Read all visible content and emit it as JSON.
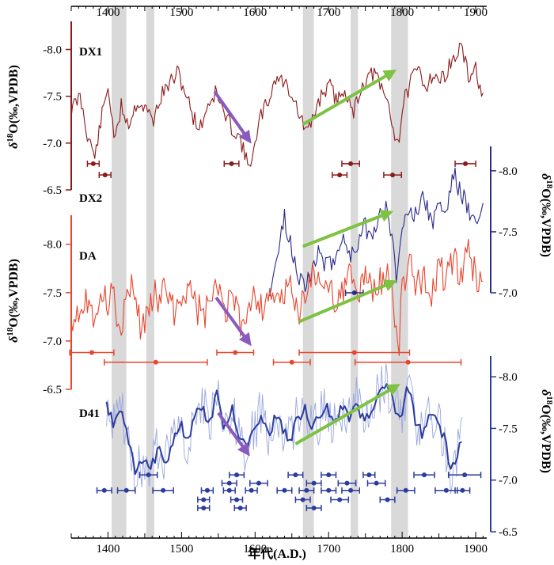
{
  "chart_data": {
    "type": "line",
    "xlabel": "年代(A.D.)",
    "xlim": [
      1350,
      1915
    ],
    "x_ticks": [
      "1400",
      "1500",
      "1600",
      "1700",
      "1800",
      "1900"
    ],
    "shaded_periods": [
      [
        1405,
        1425
      ],
      [
        1452,
        1463
      ],
      [
        1665,
        1680
      ],
      [
        1730,
        1740
      ],
      [
        1785,
        1808
      ]
    ],
    "panels": [
      {
        "name": "DX1",
        "color": "#8b1a1a",
        "axis_side": "left",
        "ylabel": "δ18O(‰,VPDB)",
        "ylim": [
          -8.3,
          -6.5
        ],
        "y_ticks": [
          "-8.0",
          "-7.5",
          "-7.0",
          "-6.5"
        ],
        "anchors": [
          [
            1350,
            -7.35
          ],
          [
            1362,
            -7.5
          ],
          [
            1372,
            -7.1
          ],
          [
            1382,
            -6.85
          ],
          [
            1392,
            -7.3
          ],
          [
            1400,
            -7.6
          ],
          [
            1410,
            -7.0
          ],
          [
            1418,
            -7.4
          ],
          [
            1428,
            -7.2
          ],
          [
            1440,
            -7.45
          ],
          [
            1452,
            -7.35
          ],
          [
            1462,
            -7.25
          ],
          [
            1472,
            -7.5
          ],
          [
            1485,
            -7.65
          ],
          [
            1495,
            -7.75
          ],
          [
            1505,
            -7.55
          ],
          [
            1515,
            -7.3
          ],
          [
            1525,
            -7.15
          ],
          [
            1535,
            -7.4
          ],
          [
            1547,
            -7.55
          ],
          [
            1558,
            -7.3
          ],
          [
            1570,
            -7.15
          ],
          [
            1580,
            -7.05
          ],
          [
            1590,
            -6.75
          ],
          [
            1600,
            -6.95
          ],
          [
            1608,
            -7.3
          ],
          [
            1618,
            -7.45
          ],
          [
            1628,
            -7.7
          ],
          [
            1640,
            -7.65
          ],
          [
            1652,
            -7.5
          ],
          [
            1662,
            -7.25
          ],
          [
            1672,
            -7.1
          ],
          [
            1682,
            -7.35
          ],
          [
            1692,
            -7.55
          ],
          [
            1702,
            -7.6
          ],
          [
            1712,
            -7.45
          ],
          [
            1722,
            -7.6
          ],
          [
            1732,
            -7.3
          ],
          [
            1742,
            -7.55
          ],
          [
            1752,
            -7.7
          ],
          [
            1762,
            -7.75
          ],
          [
            1770,
            -7.6
          ],
          [
            1780,
            -7.45
          ],
          [
            1788,
            -7.15
          ],
          [
            1795,
            -7.0
          ],
          [
            1802,
            -7.45
          ],
          [
            1812,
            -7.65
          ],
          [
            1822,
            -7.8
          ],
          [
            1832,
            -7.6
          ],
          [
            1842,
            -7.75
          ],
          [
            1852,
            -7.65
          ],
          [
            1862,
            -7.8
          ],
          [
            1872,
            -7.9
          ],
          [
            1880,
            -8.05
          ],
          [
            1890,
            -7.7
          ],
          [
            1900,
            -7.8
          ],
          [
            1910,
            -7.45
          ]
        ],
        "noise": 0.09,
        "seed": 11,
        "date_points": [
          {
            "x": 1380,
            "y": -6.78,
            "err": 8
          },
          {
            "x": 1396,
            "y": -6.66,
            "err": 8
          },
          {
            "x": 1568,
            "y": -6.78,
            "err": 10
          },
          {
            "x": 1715,
            "y": -6.66,
            "err": 10
          },
          {
            "x": 1730,
            "y": -6.78,
            "err": 12
          },
          {
            "x": 1787,
            "y": -6.66,
            "err": 12
          },
          {
            "x": 1886,
            "y": -6.78,
            "err": 14
          }
        ],
        "arrows": [
          {
            "color": "purple",
            "from": [
              1545,
              -7.55
            ],
            "to": [
              1590,
              -7.05
            ]
          },
          {
            "color": "green",
            "from": [
              1665,
              -7.2
            ],
            "to": [
              1785,
              -7.75
            ]
          }
        ]
      },
      {
        "name": "DX2",
        "color": "#2a2a8c",
        "axis_side": "right",
        "ylabel": "δ18O(‰,VPDB)",
        "ylim": [
          -8.2,
          -7.0
        ],
        "y_ticks": [
          "-8.0",
          "-7.5",
          "-7.0"
        ],
        "anchors": [
          [
            1620,
            -7.05
          ],
          [
            1630,
            -7.3
          ],
          [
            1640,
            -7.6
          ],
          [
            1650,
            -7.35
          ],
          [
            1660,
            -7.15
          ],
          [
            1670,
            -7.05
          ],
          [
            1678,
            -7.2
          ],
          [
            1688,
            -7.35
          ],
          [
            1698,
            -7.2
          ],
          [
            1708,
            -7.3
          ],
          [
            1718,
            -7.45
          ],
          [
            1728,
            -7.3
          ],
          [
            1738,
            -7.4
          ],
          [
            1748,
            -7.55
          ],
          [
            1758,
            -7.5
          ],
          [
            1768,
            -7.6
          ],
          [
            1778,
            -7.7
          ],
          [
            1786,
            -7.45
          ],
          [
            1792,
            -7.15
          ],
          [
            1800,
            -7.5
          ],
          [
            1810,
            -7.75
          ],
          [
            1820,
            -7.6
          ],
          [
            1830,
            -7.8
          ],
          [
            1840,
            -7.55
          ],
          [
            1850,
            -7.75
          ],
          [
            1860,
            -7.65
          ],
          [
            1870,
            -8.0
          ],
          [
            1880,
            -7.8
          ],
          [
            1890,
            -7.7
          ],
          [
            1900,
            -7.55
          ],
          [
            1910,
            -7.7
          ]
        ],
        "noise": 0.09,
        "seed": 23,
        "date_points": [
          {
            "x": 1735,
            "y": -7.0,
            "err": 12
          }
        ],
        "arrows": [
          {
            "color": "green",
            "from": [
              1665,
              -7.38
            ],
            "to": [
              1780,
              -7.65
            ]
          }
        ]
      },
      {
        "name": "DA",
        "color": "#e8452d",
        "axis_side": "left",
        "ylabel": "δ18O(‰,VPDB)",
        "ylim": [
          -8.3,
          -6.5
        ],
        "y_ticks": [
          "-8.0",
          "-7.5",
          "-7.0",
          "-6.5"
        ],
        "anchors": [
          [
            1350,
            -7.25
          ],
          [
            1360,
            -7.35
          ],
          [
            1370,
            -7.45
          ],
          [
            1380,
            -7.3
          ],
          [
            1390,
            -7.5
          ],
          [
            1400,
            -7.35
          ],
          [
            1408,
            -7.7
          ],
          [
            1415,
            -6.95
          ],
          [
            1425,
            -7.45
          ],
          [
            1435,
            -7.55
          ],
          [
            1445,
            -7.1
          ],
          [
            1455,
            -7.3
          ],
          [
            1462,
            -7.55
          ],
          [
            1470,
            -7.4
          ],
          [
            1480,
            -7.55
          ],
          [
            1490,
            -7.3
          ],
          [
            1500,
            -7.45
          ],
          [
            1510,
            -7.6
          ],
          [
            1520,
            -7.35
          ],
          [
            1530,
            -7.25
          ],
          [
            1540,
            -7.4
          ],
          [
            1550,
            -7.55
          ],
          [
            1560,
            -7.3
          ],
          [
            1570,
            -7.45
          ],
          [
            1580,
            -7.15
          ],
          [
            1590,
            -7.35
          ],
          [
            1600,
            -7.5
          ],
          [
            1610,
            -7.3
          ],
          [
            1620,
            -7.55
          ],
          [
            1630,
            -7.35
          ],
          [
            1640,
            -7.45
          ],
          [
            1650,
            -7.6
          ],
          [
            1660,
            -7.3
          ],
          [
            1670,
            -7.5
          ],
          [
            1680,
            -7.75
          ],
          [
            1690,
            -7.45
          ],
          [
            1700,
            -7.6
          ],
          [
            1710,
            -7.4
          ],
          [
            1720,
            -7.55
          ],
          [
            1730,
            -7.65
          ],
          [
            1740,
            -7.45
          ],
          [
            1750,
            -7.7
          ],
          [
            1760,
            -7.5
          ],
          [
            1770,
            -7.6
          ],
          [
            1780,
            -7.75
          ],
          [
            1788,
            -7.4
          ],
          [
            1795,
            -6.85
          ],
          [
            1800,
            -7.55
          ],
          [
            1810,
            -7.8
          ],
          [
            1820,
            -7.55
          ],
          [
            1830,
            -7.7
          ],
          [
            1840,
            -7.5
          ],
          [
            1850,
            -7.8
          ],
          [
            1860,
            -7.6
          ],
          [
            1870,
            -7.9
          ],
          [
            1880,
            -7.6
          ],
          [
            1890,
            -7.95
          ],
          [
            1900,
            -7.65
          ],
          [
            1910,
            -7.6
          ]
        ],
        "noise": 0.17,
        "seed": 37,
        "date_points": [
          {
            "x": 1378,
            "y": -6.88,
            "err": 30
          },
          {
            "x": 1573,
            "y": -6.88,
            "err": 25
          },
          {
            "x": 1735,
            "y": -6.88,
            "err": 75
          },
          {
            "x": 1465,
            "y": -6.78,
            "err": 70
          },
          {
            "x": 1650,
            "y": -6.78,
            "err": 25
          },
          {
            "x": 1808,
            "y": -6.78,
            "err": 72
          }
        ],
        "arrows": [
          {
            "color": "purple",
            "from": [
              1547,
              -7.45
            ],
            "to": [
              1590,
              -7.0
            ]
          },
          {
            "color": "green",
            "from": [
              1660,
              -7.2
            ],
            "to": [
              1785,
              -7.6
            ]
          }
        ]
      },
      {
        "name": "D41",
        "color": "#2b3b9e",
        "axis_side": "right",
        "ylabel": "δ18O(‰,VPDB)",
        "ylim": [
          -8.2,
          -6.5
        ],
        "y_ticks": [
          "-8.0",
          "-7.5",
          "-7.0",
          "-6.5"
        ],
        "anchors": [
          [
            1398,
            -7.7
          ],
          [
            1408,
            -7.55
          ],
          [
            1418,
            -7.7
          ],
          [
            1428,
            -7.35
          ],
          [
            1438,
            -7.05
          ],
          [
            1448,
            -7.2
          ],
          [
            1458,
            -7.1
          ],
          [
            1468,
            -7.3
          ],
          [
            1478,
            -7.15
          ],
          [
            1488,
            -7.4
          ],
          [
            1498,
            -7.55
          ],
          [
            1508,
            -7.35
          ],
          [
            1518,
            -7.6
          ],
          [
            1528,
            -7.75
          ],
          [
            1538,
            -7.5
          ],
          [
            1548,
            -7.85
          ],
          [
            1558,
            -7.5
          ],
          [
            1568,
            -7.7
          ],
          [
            1578,
            -7.45
          ],
          [
            1588,
            -7.3
          ],
          [
            1598,
            -7.5
          ],
          [
            1608,
            -7.65
          ],
          [
            1618,
            -7.45
          ],
          [
            1628,
            -7.6
          ],
          [
            1638,
            -7.5
          ],
          [
            1648,
            -7.4
          ],
          [
            1658,
            -7.6
          ],
          [
            1668,
            -7.7
          ],
          [
            1678,
            -7.5
          ],
          [
            1688,
            -7.6
          ],
          [
            1698,
            -7.7
          ],
          [
            1708,
            -7.55
          ],
          [
            1718,
            -7.7
          ],
          [
            1728,
            -7.6
          ],
          [
            1738,
            -7.75
          ],
          [
            1748,
            -7.55
          ],
          [
            1758,
            -7.7
          ],
          [
            1768,
            -7.8
          ],
          [
            1778,
            -7.95
          ],
          [
            1788,
            -7.75
          ],
          [
            1798,
            -7.55
          ],
          [
            1808,
            -7.95
          ],
          [
            1818,
            -7.55
          ],
          [
            1828,
            -7.45
          ],
          [
            1838,
            -7.65
          ],
          [
            1848,
            -7.55
          ],
          [
            1858,
            -7.4
          ],
          [
            1866,
            -7.1
          ],
          [
            1874,
            -7.2
          ],
          [
            1882,
            -7.4
          ]
        ],
        "noise": 0.06,
        "raw_noise": 0.25,
        "seed": 53,
        "date_rows": [
          {
            "y": -6.73,
            "points": [
              [
                1530,
                8
              ],
              [
                1580,
                8
              ],
              [
                1680,
                10
              ]
            ]
          },
          {
            "y": -6.81,
            "points": [
              [
                1530,
                8
              ],
              [
                1575,
                8
              ],
              [
                1665,
                10
              ],
              [
                1715,
                12
              ],
              [
                1780,
                10
              ]
            ]
          },
          {
            "y": -6.9,
            "points": [
              [
                1395,
                10
              ],
              [
                1425,
                12
              ],
              [
                1475,
                14
              ],
              [
                1535,
                8
              ],
              [
                1565,
                8
              ],
              [
                1595,
                8
              ],
              [
                1640,
                10
              ],
              [
                1670,
                10
              ],
              [
                1700,
                10
              ],
              [
                1730,
                12
              ],
              [
                1805,
                12
              ],
              [
                1860,
                15
              ],
              [
                1882,
                10
              ]
            ]
          },
          {
            "y": -6.97,
            "points": [
              [
                1565,
                10
              ],
              [
                1605,
                12
              ],
              [
                1680,
                10
              ],
              [
                1725,
                12
              ],
              [
                1765,
                12
              ]
            ]
          },
          {
            "y": -7.05,
            "points": [
              [
                1455,
                12
              ],
              [
                1575,
                10
              ],
              [
                1655,
                10
              ],
              [
                1700,
                10
              ],
              [
                1755,
                8
              ],
              [
                1830,
                14
              ],
              [
                1885,
                22
              ]
            ]
          }
        ],
        "arrows": [
          {
            "color": "purple",
            "from": [
              1550,
              -7.65
            ],
            "to": [
              1588,
              -7.28
            ]
          },
          {
            "color": "green",
            "from": [
              1655,
              -7.35
            ],
            "to": [
              1790,
              -7.9
            ]
          }
        ]
      }
    ]
  }
}
